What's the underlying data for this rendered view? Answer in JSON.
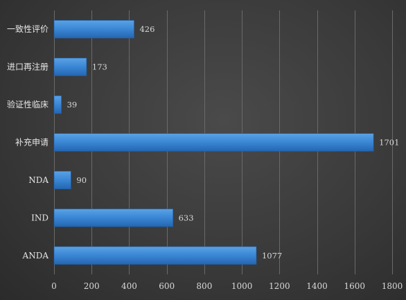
{
  "chart_data": {
    "type": "bar",
    "orientation": "horizontal",
    "title": "",
    "xlabel": "",
    "ylabel": "",
    "categories": [
      "一致性评价",
      "进口再注册",
      "验证性临床",
      "补充申请",
      "NDA",
      "IND",
      "ANDA"
    ],
    "values": [
      426,
      173,
      39,
      1701,
      90,
      633,
      1077
    ],
    "xlim": [
      0,
      1800
    ],
    "xticks": [
      0,
      200,
      400,
      600,
      800,
      1000,
      1200,
      1400,
      1600,
      1800
    ],
    "grid": true,
    "legend": "none",
    "data_labels": true,
    "colors": {
      "bar": "#3a86d4",
      "bar_top": "#5aa2e6",
      "bar_bottom": "#2466b0",
      "grid": "#6a6a6a",
      "text": "#d9d9d9"
    }
  }
}
